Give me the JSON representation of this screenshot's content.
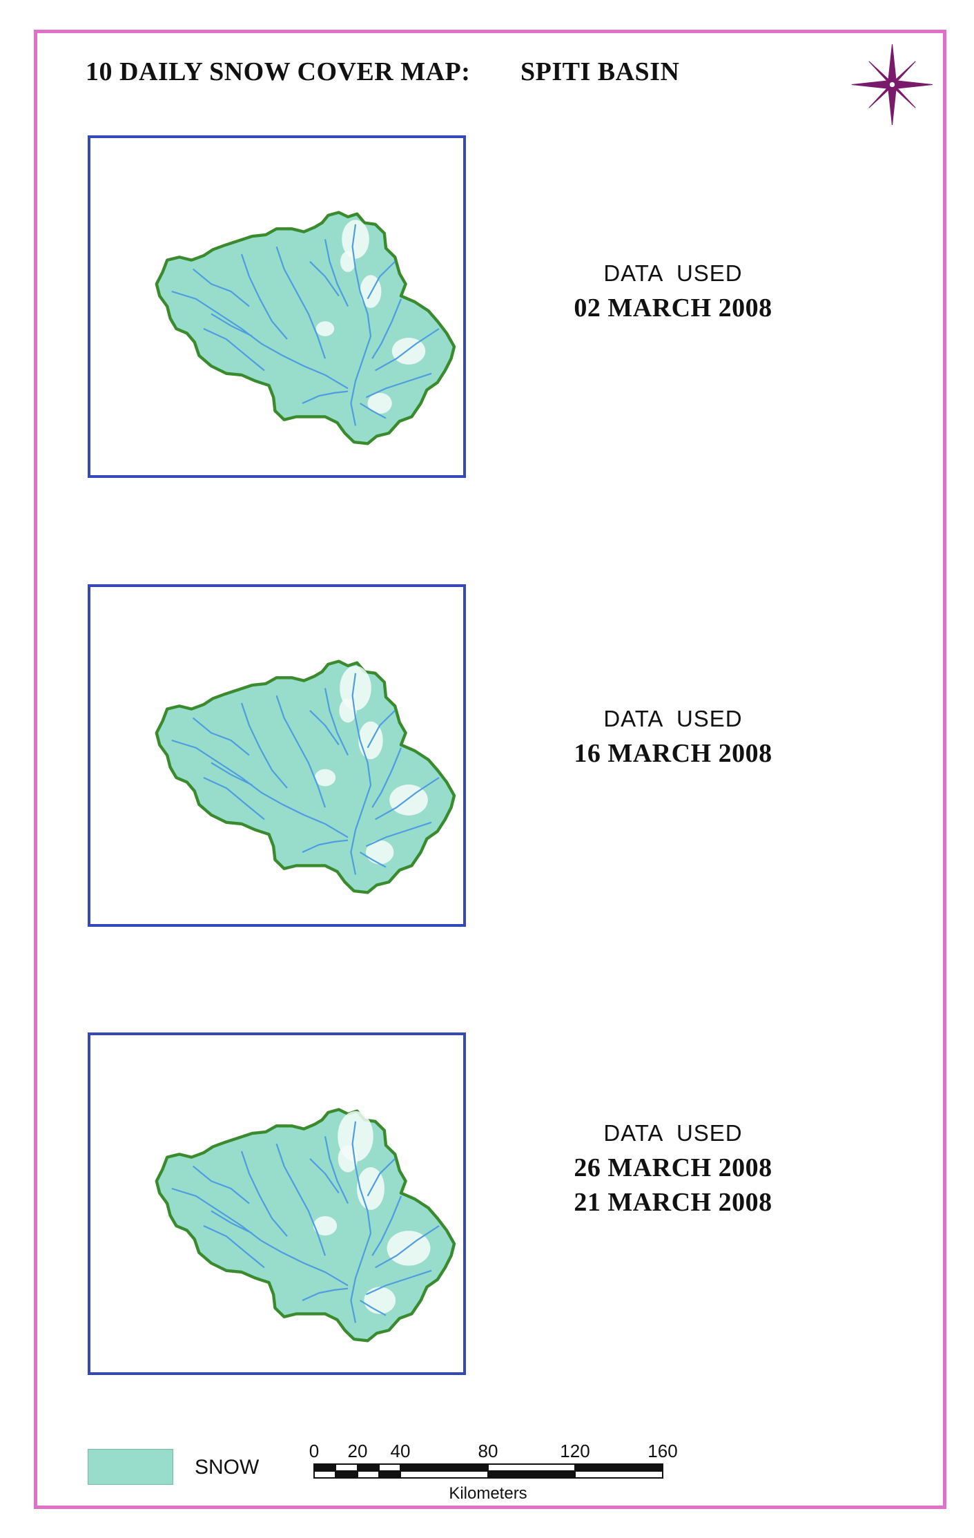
{
  "title": {
    "left": "10 DAILY SNOW COVER MAP:",
    "right": "SPITI BASIN"
  },
  "compass_icon": "compass-rose-icon",
  "colors": {
    "frame": "#e070c8",
    "map_border": "#3548b8",
    "basin_fill": "#98dccb",
    "basin_outline": "#3a8a2e",
    "rivers": "#4d9de0",
    "snow": "#98dccb"
  },
  "maps": [
    {
      "label": "DATA  USED",
      "dates": [
        "02 MARCH 2008"
      ]
    },
    {
      "label": "DATA  USED",
      "dates": [
        "16 MARCH 2008"
      ]
    },
    {
      "label": "DATA  USED",
      "dates": [
        "26 MARCH 2008",
        "21 MARCH 2008"
      ]
    }
  ],
  "legend": {
    "label": "SNOW"
  },
  "scale": {
    "ticks": [
      "0",
      "20",
      "40",
      "80",
      "120",
      "160"
    ],
    "unit": "Kilometers"
  }
}
